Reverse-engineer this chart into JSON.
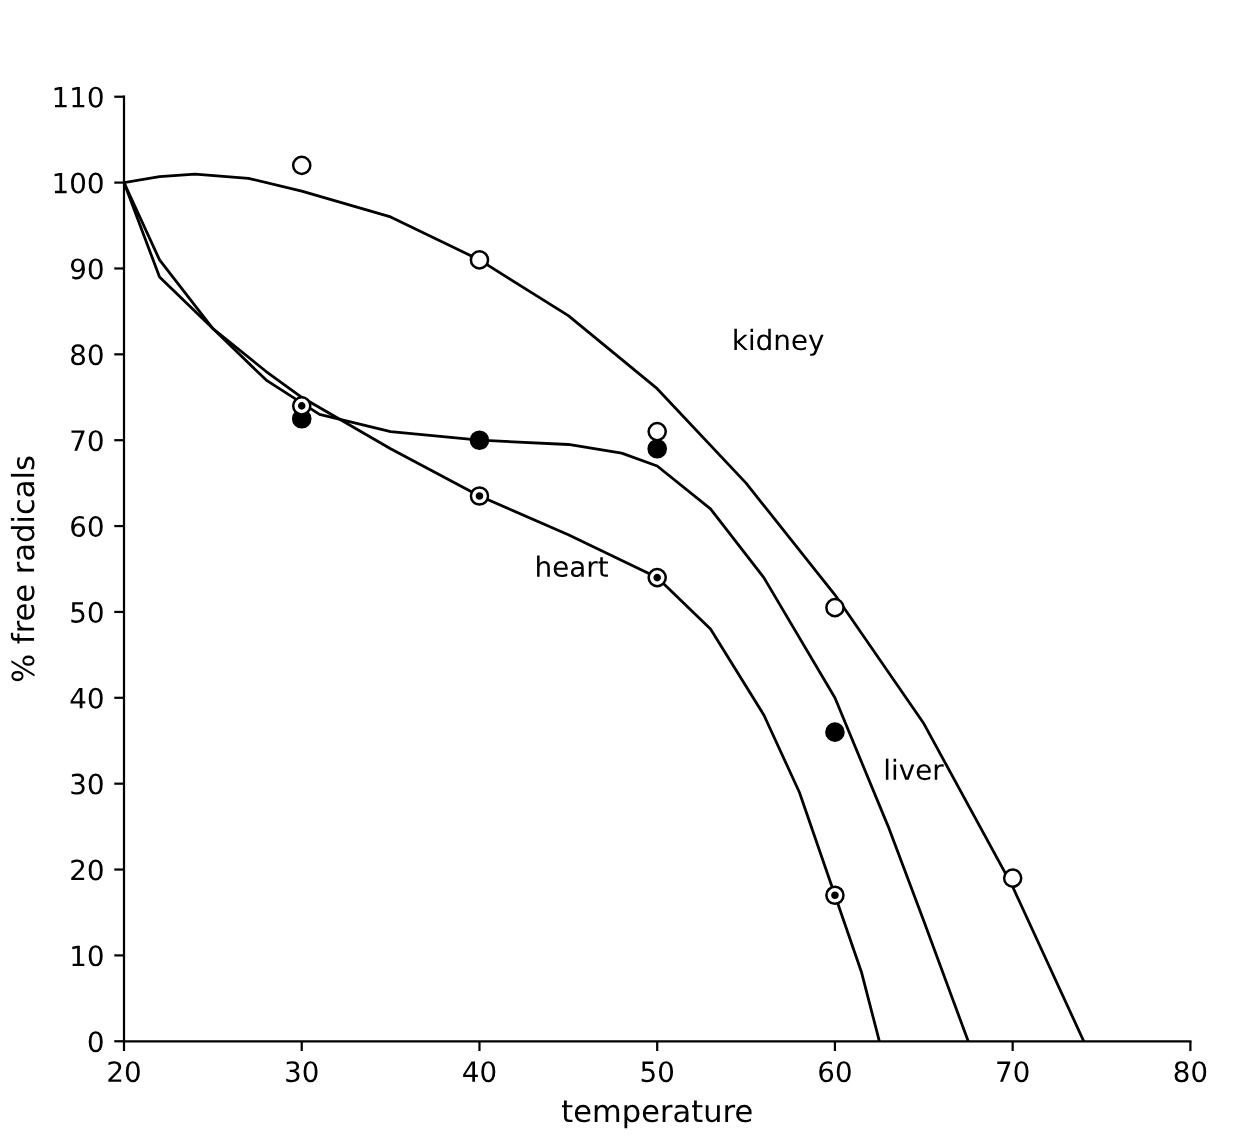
{
  "chart_data": {
    "type": "scatter",
    "xlabel": "temperature",
    "ylabel": "% free radicals",
    "xlim": [
      20,
      80
    ],
    "ylim": [
      0,
      110
    ],
    "xticks": [
      20,
      30,
      40,
      50,
      60,
      70,
      80
    ],
    "yticks": [
      0,
      10,
      20,
      30,
      40,
      50,
      60,
      70,
      80,
      90,
      100,
      110
    ],
    "grid": false,
    "legend": false,
    "series": [
      {
        "marker": "circle",
        "color": "#000000",
        "x": [
          30,
          40,
          50,
          60,
          70
        ],
        "values": [
          102,
          91,
          71,
          50.5,
          19
        ]
      },
      {
        "marker": "circle",
        "color": "#000000",
        "x": [
          30,
          40,
          50,
          60
        ],
        "values": [
          72.5,
          70,
          69,
          36
        ]
      },
      {
        "marker": "circle",
        "color": "#000000",
        "x": [
          30,
          40,
          50,
          60
        ],
        "values": [
          74,
          63.5,
          54,
          17
        ]
      },
      {
        "type": "line",
        "marker": "none",
        "color": "#000000",
        "x": [
          20,
          22,
          24,
          27,
          30,
          35,
          40,
          45,
          50,
          55,
          60,
          65,
          70,
          74
        ],
        "values": [
          100,
          100.7,
          101,
          100.5,
          99,
          96,
          91,
          84.5,
          76,
          65,
          52,
          37,
          18,
          0
        ]
      },
      {
        "type": "line",
        "marker": "none",
        "color": "#000000",
        "x": [
          20,
          22,
          25,
          28,
          31,
          35,
          40,
          45,
          48,
          50,
          53,
          56,
          60,
          63,
          65,
          67.5
        ],
        "values": [
          100,
          91,
          83,
          77,
          73,
          71,
          70,
          69.5,
          68.5,
          67,
          62,
          54,
          40,
          25,
          14,
          0
        ]
      },
      {
        "type": "line",
        "marker": "none",
        "color": "#000000",
        "x": [
          20,
          22,
          25,
          28,
          30,
          35,
          40,
          45,
          50,
          53,
          56,
          58,
          60,
          61.5,
          62.5
        ],
        "values": [
          100,
          89,
          83,
          78,
          75,
          69,
          63.5,
          59,
          54,
          48,
          38,
          29,
          17,
          8,
          0
        ]
      }
    ],
    "annotations": [
      "kidney",
      "liver",
      "heart"
    ]
  }
}
